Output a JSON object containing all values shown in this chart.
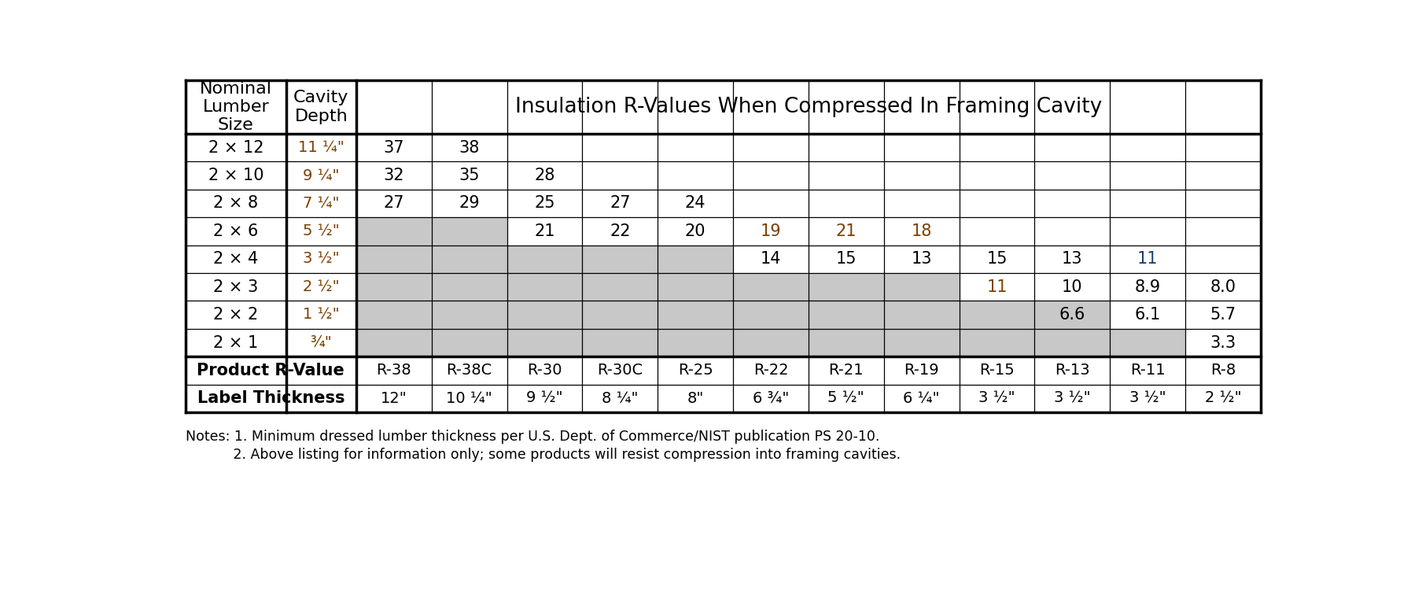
{
  "title": "Insulation R-Values When Compressed In Framing Cavity",
  "lumber_rows": [
    {
      "size": "2 × 12",
      "depth": "11 ¼\""
    },
    {
      "size": "2 × 10",
      "depth": "9 ¼\""
    },
    {
      "size": "2 × 8",
      "depth": "7 ¼\""
    },
    {
      "size": "2 × 6",
      "depth": "5 ½\""
    },
    {
      "size": "2 × 4",
      "depth": "3 ½\""
    },
    {
      "size": "2 × 3",
      "depth": "2 ½\""
    },
    {
      "size": "2 × 2",
      "depth": "1 ½\""
    },
    {
      "size": "2 × 1",
      "depth": "¾\""
    }
  ],
  "product_r_values": [
    "R-38",
    "R-38C",
    "R-30",
    "R-30C",
    "R-25",
    "R-22",
    "R-21",
    "R-19",
    "R-15",
    "R-13",
    "R-11",
    "R-8"
  ],
  "label_thickness": [
    "12\"",
    "10 ¼\"",
    "9 ½\"",
    "8 ¼\"",
    "8\"",
    "6 ¾\"",
    "5 ½\"",
    "6 ¼\"",
    "3 ½\"",
    "3 ½\"",
    "3 ½\"",
    "2 ½\""
  ],
  "cell_data": [
    [
      "37",
      "38",
      "",
      "",
      "",
      "",
      "",
      "",
      "",
      "",
      "",
      ""
    ],
    [
      "32",
      "35",
      "28",
      "",
      "",
      "",
      "",
      "",
      "",
      "",
      "",
      ""
    ],
    [
      "27",
      "29",
      "25",
      "27",
      "24",
      "",
      "",
      "",
      "",
      "",
      "",
      ""
    ],
    [
      "",
      "",
      "21",
      "22",
      "20",
      "19",
      "21",
      "18",
      "",
      "",
      "",
      ""
    ],
    [
      "",
      "",
      "",
      "",
      "",
      "14",
      "15",
      "13",
      "15",
      "13",
      "11",
      ""
    ],
    [
      "",
      "",
      "",
      "",
      "",
      "",
      "",
      "",
      "11",
      "10",
      "8.9",
      "8.0"
    ],
    [
      "",
      "",
      "",
      "",
      "",
      "",
      "",
      "",
      "",
      "6.6",
      "6.1",
      "5.7"
    ],
    [
      "",
      "",
      "",
      "",
      "",
      "",
      "",
      "",
      "",
      "",
      "",
      "3.3"
    ]
  ],
  "cell_colors": [
    [
      "black",
      "black",
      "black",
      "black",
      "black",
      "black",
      "black",
      "black",
      "black",
      "black",
      "black",
      "black"
    ],
    [
      "black",
      "black",
      "black",
      "black",
      "black",
      "black",
      "black",
      "black",
      "black",
      "black",
      "black",
      "black"
    ],
    [
      "black",
      "black",
      "black",
      "black",
      "black",
      "black",
      "black",
      "black",
      "black",
      "black",
      "black",
      "black"
    ],
    [
      "black",
      "black",
      "black",
      "black",
      "black",
      "#7b3f00",
      "#7b3f00",
      "#7b3f00",
      "black",
      "black",
      "black",
      "black"
    ],
    [
      "black",
      "black",
      "black",
      "black",
      "black",
      "black",
      "black",
      "black",
      "black",
      "black",
      "#1a3a6b",
      "black"
    ],
    [
      "black",
      "black",
      "black",
      "black",
      "black",
      "black",
      "black",
      "black",
      "#7b3f00",
      "black",
      "black",
      "black"
    ],
    [
      "black",
      "black",
      "black",
      "black",
      "black",
      "black",
      "black",
      "black",
      "black",
      "black",
      "black",
      "black"
    ],
    [
      "black",
      "black",
      "black",
      "black",
      "black",
      "black",
      "black",
      "black",
      "black",
      "black",
      "black",
      "black"
    ]
  ],
  "gray_ranges": [
    [],
    [],
    [],
    [
      0,
      1
    ],
    [
      0,
      1,
      2,
      3,
      4
    ],
    [
      0,
      1,
      2,
      3,
      4,
      5,
      6,
      7
    ],
    [
      0,
      1,
      2,
      3,
      4,
      5,
      6,
      7,
      8,
      9
    ],
    [
      0,
      1,
      2,
      3,
      4,
      5,
      6,
      7,
      8,
      9,
      10
    ]
  ],
  "depth_color": "#7b3f00",
  "gray_color": "#c8c8c8",
  "note1": "Notes: 1. Minimum dressed lumber thickness per U.S. Dept. of Commerce/NIST publication PS 20-10.",
  "note2": "           2. Above listing for information only; some products will resist compression into framing cavities."
}
